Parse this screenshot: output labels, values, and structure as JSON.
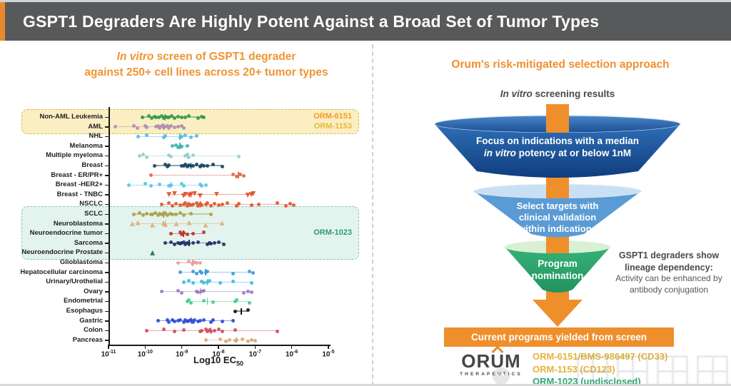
{
  "header": {
    "title": "GSPT1 Degraders Are Highly Potent Against a Broad Set of Tumor Types"
  },
  "left_panel": {
    "title_italic": "In vitro",
    "title_rest": " screen of GSPT1 degrader",
    "title_line2": "against 250+ cell lines across 20+ tumor types",
    "xlabel_main": "Log10 EC",
    "xlabel_sub": "50"
  },
  "chart_data": {
    "type": "scatter",
    "title": "In vitro screen of GSPT1 degrader against 250+ cell lines across 20+ tumor types",
    "xlabel": "Log10 EC50",
    "xlim": [
      -11,
      -5
    ],
    "x_ticks": [
      -11,
      -10,
      -9,
      -8,
      -7,
      -6,
      -5
    ],
    "grid": false,
    "rows": [
      {
        "label": "Non-AML Leukemia",
        "color": "#2f9a47",
        "marker": "circle",
        "median": -9.45,
        "points": [
          -10.08,
          -9.9,
          -9.82,
          -9.75,
          -9.7,
          -9.62,
          -9.55,
          -9.5,
          -9.45,
          -9.4,
          -9.35,
          -9.28,
          -9.2,
          -9.1,
          -9.0,
          -8.9,
          -8.8,
          -8.55,
          -8.45,
          -8.4
        ]
      },
      {
        "label": "AML",
        "color": "#ad8fad",
        "marker": "circle",
        "median": -9.5,
        "points": [
          -10.82,
          -10.3,
          -10.22,
          -10.0,
          -9.95,
          -9.7,
          -9.65,
          -9.6,
          -9.55,
          -9.5,
          -9.45,
          -9.4,
          -9.35,
          -9.3,
          -9.2,
          -9.1,
          -9.0,
          -8.95
        ]
      },
      {
        "label": "NHL",
        "color": "#4dbfdb",
        "marker": "circle",
        "median": -9.05,
        "points": [
          -10.2,
          -9.95,
          -9.5,
          -9.45,
          -9.05,
          -9.0,
          -8.9,
          -8.75,
          -8.6
        ]
      },
      {
        "label": "Melanoma",
        "color": "#3fb3ae",
        "marker": "circle",
        "median": -9.05,
        "points": [
          -9.25,
          -9.15,
          -9.1,
          -9.05,
          -9.0,
          -8.85
        ]
      },
      {
        "label": "Multiple myeloma",
        "color": "#8ed2cc",
        "marker": "circle",
        "median": -8.85,
        "points": [
          -10.15,
          -10.05,
          -9.95,
          -9.35,
          -9.3,
          -8.9,
          -8.85,
          -8.8,
          -8.7,
          -7.45
        ]
      },
      {
        "label": "Breast",
        "color": "#16475b",
        "marker": "circle",
        "median": -8.75,
        "points": [
          -9.75,
          -9.45,
          -9.4,
          -9.35,
          -9.0,
          -8.95,
          -8.9,
          -8.85,
          -8.8,
          -8.75,
          -8.7,
          -8.6,
          -8.5,
          -8.45,
          -8.4,
          -8.3,
          -8.15,
          -7.9
        ]
      },
      {
        "label": "Breast - ER/PR+",
        "color": "#e2684a",
        "marker": "circle",
        "median": -7.45,
        "points": [
          -9.85,
          -7.6,
          -7.5,
          -7.4,
          -7.3
        ]
      },
      {
        "label": "Breast -HER2+",
        "color": "#57c7e3",
        "marker": "circle",
        "median": -9.3,
        "points": [
          -10.45,
          -10.0,
          -9.85,
          -9.6,
          -9.35,
          -9.3,
          -9.0,
          -8.95,
          -8.5,
          -8.45,
          -8.35
        ]
      },
      {
        "label": "Breast - TNBC",
        "color": "#e0502a",
        "marker": "triangle-down",
        "median": -8.75,
        "points": [
          -9.35,
          -9.2,
          -8.95,
          -8.9,
          -8.8,
          -8.75,
          -8.65,
          -8.5,
          -8.05,
          -7.2,
          -7.1,
          -7.05
        ]
      },
      {
        "label": "NSCLC",
        "color": "#e2562b",
        "marker": "circle",
        "median": -8.5,
        "points": [
          -9.55,
          -9.35,
          -9.25,
          -9.15,
          -9.05,
          -8.95,
          -8.9,
          -8.85,
          -8.8,
          -8.75,
          -8.7,
          -8.6,
          -8.55,
          -8.5,
          -8.45,
          -8.35,
          -8.3,
          -8.2,
          -8.1,
          -8.0,
          -7.9,
          -7.75,
          -7.5,
          -7.45,
          -7.1,
          -6.9,
          -6.4,
          -6.15,
          -6.05,
          -5.95
        ]
      },
      {
        "label": "SCLC",
        "color": "#a8a348",
        "marker": "circle",
        "median": -9.5,
        "points": [
          -10.3,
          -10.15,
          -10.05,
          -9.95,
          -9.85,
          -9.8,
          -9.72,
          -9.65,
          -9.6,
          -9.55,
          -9.5,
          -9.45,
          -9.4,
          -9.32,
          -9.25,
          -9.15,
          -9.05,
          -8.95,
          -8.75,
          -8.2
        ]
      },
      {
        "label": "Neuroblastoma",
        "color": "#dcaf7e",
        "marker": "triangle-up",
        "median": -9.45,
        "points": [
          -10.35,
          -10.2,
          -9.8,
          -9.5,
          -9.45,
          -9.15,
          -8.8,
          -8.35,
          -7.9
        ]
      },
      {
        "label": "Neuroendocrine tumor",
        "color": "#c22e2e",
        "marker": "circle",
        "median": -8.95,
        "points": [
          -9.3,
          -9.05,
          -9.0,
          -8.95,
          -8.85,
          -8.7,
          -8.4
        ]
      },
      {
        "label": "Sarcoma",
        "color": "#1d2e6e",
        "marker": "circle",
        "median": -8.8,
        "points": [
          -9.45,
          -9.3,
          -9.2,
          -9.1,
          -9.05,
          -9.0,
          -8.95,
          -8.9,
          -8.85,
          -8.8,
          -8.7,
          -8.55,
          -8.3,
          -8.25,
          -8.2,
          -8.1,
          -8.0,
          -7.85
        ]
      },
      {
        "label": "Neuroendocrine Prostate",
        "color": "#1e6f52",
        "marker": "triangle-up",
        "median": null,
        "points": [
          -9.8
        ]
      },
      {
        "label": "Glioblastoma",
        "color": "#ee9d9d",
        "marker": "circle",
        "median": -8.7,
        "points": [
          -9.1,
          -8.8,
          -8.72,
          -8.65,
          -8.6,
          -8.5
        ]
      },
      {
        "label": "Hepatocellular carcinoma",
        "color": "#3b9ad9",
        "marker": "circle",
        "median": -8.35,
        "points": [
          -9.05,
          -8.7,
          -8.6,
          -8.5,
          -8.45,
          -8.35,
          -8.3,
          -7.6,
          -7.15,
          -7.05
        ]
      },
      {
        "label": "Urinary/Urothelial",
        "color": "#35c0de",
        "marker": "circle",
        "median": -8.3,
        "points": [
          -8.95,
          -8.8,
          -8.7,
          -8.45,
          -8.4,
          -8.3,
          -8.25,
          -7.95,
          -7.6,
          -7.1
        ]
      },
      {
        "label": "Ovary",
        "color": "#9b79c9",
        "marker": "circle",
        "median": -8.5,
        "points": [
          -9.55,
          -9.1,
          -9.0,
          -8.6,
          -8.55,
          -8.45,
          -8.4,
          -7.3,
          -7.2,
          -7.1
        ]
      },
      {
        "label": "Endometrial",
        "color": "#47cd8e",
        "marker": "circle",
        "median": -8.3,
        "points": [
          -8.85,
          -8.8,
          -8.75,
          -8.4,
          -8.15,
          -7.55,
          -7.5,
          -7.15
        ]
      },
      {
        "label": "Esophagus",
        "color": "#15151a",
        "marker": "circle",
        "median": -7.38,
        "points": [
          -7.55,
          -7.2
        ]
      },
      {
        "label": "Gastric",
        "color": "#2a4bd7",
        "marker": "circle",
        "median": -8.75,
        "points": [
          -9.65,
          -9.4,
          -9.35,
          -9.25,
          -9.2,
          -9.1,
          -9.05,
          -8.95,
          -8.9,
          -8.85,
          -8.8,
          -8.75,
          -8.7,
          -8.65,
          -8.55,
          -8.5,
          -8.4,
          -8.2,
          -8.15,
          -7.9,
          -7.6
        ]
      },
      {
        "label": "Colon",
        "color": "#d04b5e",
        "marker": "circle",
        "median": -8.2,
        "points": [
          -9.95,
          -9.5,
          -9.2,
          -8.95,
          -8.5,
          -8.45,
          -8.35,
          -8.3,
          -8.25,
          -8.2,
          -8.1,
          -8.0,
          -7.9,
          -7.55,
          -6.4
        ]
      },
      {
        "label": "Pancreas",
        "color": "#dba878",
        "marker": "circle",
        "median": -7.5,
        "points": [
          -8.35,
          -7.95,
          -7.8,
          -7.7,
          -7.55,
          -7.5,
          -7.35,
          -7.2,
          -7.1,
          -7.0
        ]
      }
    ],
    "highlights": [
      {
        "rows": [
          0,
          1
        ],
        "fill": "#fbeec2",
        "border": "#d9b95c",
        "labels": [
          {
            "text": "ORM-6151",
            "color": "#f59b22",
            "row": 0
          },
          {
            "text": "ORM-1153",
            "color": "#e8b83a",
            "row": 1
          }
        ]
      },
      {
        "rows": [
          10,
          14
        ],
        "fill": "#e3f3ed",
        "border": "#86c8b2",
        "labels": [
          {
            "text": "ORM-1023",
            "color": "#2a9d76"
          }
        ]
      }
    ]
  },
  "right_panel": {
    "title": "Orum's risk-mitigated selection approach",
    "subtitle_italic": "In vitro",
    "subtitle_rest": " screening results",
    "funnel1_line1": "Focus on indications with a median",
    "funnel1_line2_italic": "in vitro",
    "funnel1_line2_rest": " potency at or below 1nM",
    "funnel2_line1": "Select targets with",
    "funnel2_line2": "clinical validation",
    "funnel2_line3": "within indications",
    "funnel3_line1": "Program",
    "funnel3_line2": "nomination",
    "note_bold1": "GSPT1 degraders show",
    "note_bold2": "lineage dependency:",
    "note_reg1": "Activity can be enhanced by",
    "note_reg2": "antibody conjugation",
    "banner": "Current programs yielded from screen",
    "logo_or": "OR",
    "logo_u": "U",
    "logo_m": "M",
    "logo_sub": "THERAPEUTICS",
    "programs": [
      "ORM-6151/BMS-986497 (CD33)",
      "ORM-1153 (CD123)",
      "ORM-1023 (undisclosed)"
    ],
    "colors": {
      "orange": "#ee8f2c",
      "funnel1_navy": "#123d7e",
      "funnel2_blue": "#5b9bd5",
      "funnel3_green": "#2ba56b",
      "program_gold": "#e2b33c",
      "program_green": "#2ea874"
    }
  }
}
